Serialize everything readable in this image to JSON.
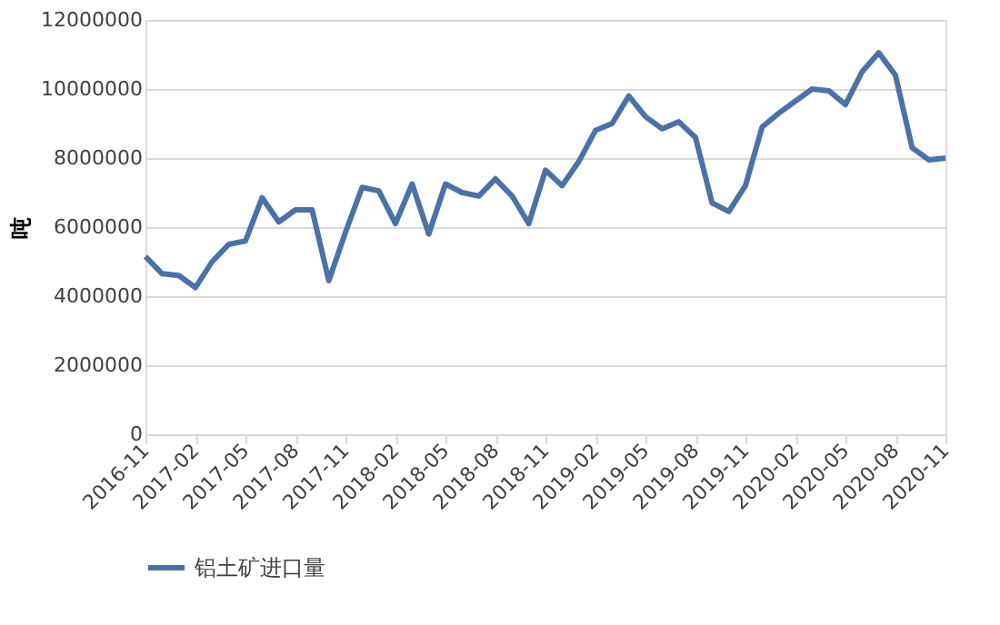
{
  "chart_data": {
    "type": "line",
    "ylabel": "吨",
    "categories": [
      "2016-11",
      null,
      null,
      "2017-02",
      null,
      null,
      "2017-05",
      null,
      null,
      "2017-08",
      null,
      null,
      "2017-11",
      null,
      null,
      "2018-02",
      null,
      null,
      "2018-05",
      null,
      null,
      "2018-08",
      null,
      null,
      "2018-11",
      null,
      null,
      "2019-02",
      null,
      null,
      "2019-05",
      null,
      null,
      "2019-08",
      null,
      null,
      "2019-11",
      null,
      null,
      "2020-02",
      null,
      null,
      "2020-05",
      null,
      null,
      "2020-08",
      null,
      null,
      "2020-11"
    ],
    "series": [
      {
        "name": "铝土矿进口量",
        "color": "#4a72a6",
        "values": [
          5150000,
          4650000,
          4600000,
          4250000,
          5000000,
          5500000,
          5600000,
          6850000,
          6150000,
          6500000,
          6500000,
          4450000,
          5850000,
          7150000,
          7050000,
          6100000,
          7250000,
          5800000,
          7250000,
          7000000,
          6900000,
          7400000,
          6900000,
          6100000,
          7650000,
          7200000,
          7900000,
          8800000,
          9000000,
          9800000,
          9200000,
          8850000,
          9050000,
          8600000,
          6700000,
          6450000,
          7200000,
          8900000,
          9300000,
          9650000,
          10000000,
          9950000,
          9550000,
          10500000,
          11050000,
          10400000,
          8300000,
          7950000,
          8000000
        ]
      }
    ],
    "ylim": [
      0,
      12000000
    ],
    "yticks": [
      0,
      2000000,
      4000000,
      6000000,
      8000000,
      10000000,
      12000000
    ],
    "grid": "y",
    "legend": "bottom",
    "line_style": "solid",
    "marker": "none"
  }
}
